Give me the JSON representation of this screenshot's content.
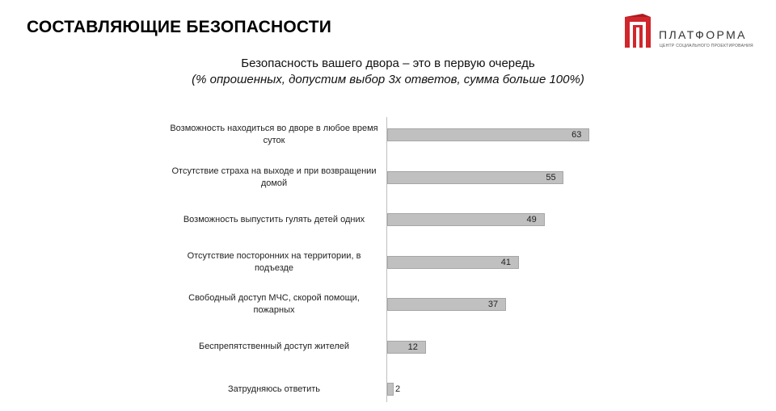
{
  "slide": {
    "title": "СОСТАВЛЯЮЩИЕ БЕЗОПАСНОСТИ"
  },
  "logo": {
    "name": "ПЛАТФОРМА",
    "tagline": "ЦЕНТР СОЦИАЛЬНОГО ПРОЕКТИРОВАНИЯ",
    "brand_color": "#d0262c"
  },
  "chart_data": {
    "type": "bar",
    "orientation": "horizontal",
    "title": "Безопасность вашего двора – это в первую очередь",
    "subtitle": "(% опрошенных, допустим выбор 3х ответов, сумма больше 100%)",
    "categories": [
      "Возможность находиться во дворе в любое время суток",
      "Отсутствие страха на выходе и при возвращении домой",
      "Возможность выпустить гулять детей одних",
      "Отсутствие посторонних на территории, в подъезде",
      "Свободный доступ МЧС, скорой помощи, пожарных",
      "Беспрепятственный доступ жителей",
      "Затрудняюсь ответить"
    ],
    "values": [
      63,
      55,
      49,
      41,
      37,
      12,
      2
    ],
    "bar_color": "#c0c0c0",
    "data_labels": true,
    "grid": false,
    "xlim": [
      0,
      100
    ]
  }
}
